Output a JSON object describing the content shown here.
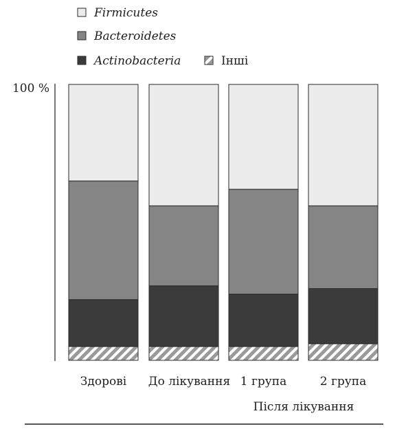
{
  "chart_data": {
    "type": "bar",
    "stacked": true,
    "title": "",
    "xlabel": "",
    "ylabel": "",
    "ylim": [
      0,
      100
    ],
    "y_tick_labels": [
      "100 %"
    ],
    "grid": false,
    "legend_position": "top-left",
    "categories": [
      "Здорові",
      "До лікування",
      "1 група",
      "2 група"
    ],
    "category_group_label": "Після лікування",
    "series": [
      {
        "name": "Інші",
        "values": [
          5,
          5,
          5,
          6
        ],
        "color": "#d0d0d0",
        "pattern": "hatch"
      },
      {
        "name": "Actinobacteria",
        "values": [
          17,
          22,
          19,
          20
        ],
        "color": "#3b3b3b",
        "pattern": "solid"
      },
      {
        "name": "Bacteroidetes",
        "values": [
          43,
          29,
          38,
          30
        ],
        "color": "#858585",
        "pattern": "solid"
      },
      {
        "name": "Firmicutes",
        "values": [
          35,
          44,
          38,
          44
        ],
        "color": "#ececec",
        "pattern": "solid"
      }
    ],
    "legend": [
      {
        "name": "Firmicutes",
        "style": "italic",
        "series_index": 3
      },
      {
        "name": "Bacteroidetes",
        "style": "italic",
        "series_index": 2
      },
      {
        "name": "Actinobacteria",
        "style": "italic",
        "series_index": 1
      },
      {
        "name": "Інші",
        "style": "normal",
        "series_index": 0
      }
    ]
  }
}
